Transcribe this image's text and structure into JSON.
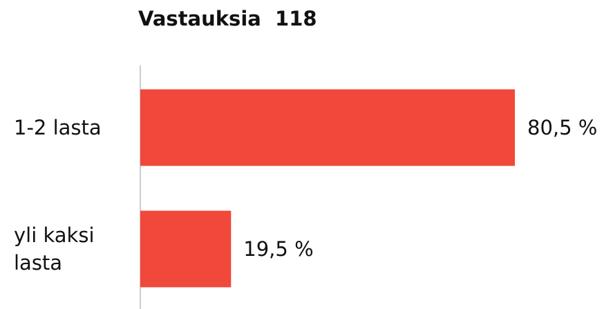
{
  "chart_data": {
    "type": "bar",
    "orientation": "horizontal",
    "title": "Vastauksia  118",
    "categories": [
      "1-2 lasta",
      "yli kaksi lasta"
    ],
    "values": [
      80.5,
      19.5
    ],
    "value_labels": [
      "80,5 %",
      "19,5 %"
    ],
    "color": "#f0483a"
  }
}
